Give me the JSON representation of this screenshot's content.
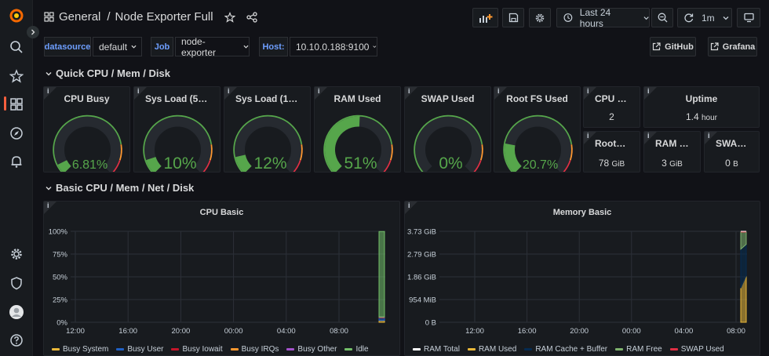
{
  "breadcrumb": {
    "folder": "General",
    "separator": "/",
    "title": "Node Exporter Full"
  },
  "toolbar": {
    "time_range": "Last 24 hours",
    "refresh_interval": "1m"
  },
  "variables": [
    {
      "label": "datasource",
      "value": "default"
    },
    {
      "label": "Job",
      "value": "node-exporter"
    },
    {
      "label": "Host:",
      "value": "10.10.0.188:9100"
    }
  ],
  "links": {
    "github": "GitHub",
    "grafana": "Grafana"
  },
  "rows": {
    "quick": "Quick CPU / Mem / Disk",
    "basic": "Basic CPU / Mem / Net / Disk"
  },
  "info_glyph": "i",
  "gauges": [
    {
      "title": "CPU Busy",
      "value_text": "6.81%",
      "value": 6.81
    },
    {
      "title": "Sys Load (5m ...",
      "value_text": "10%",
      "value": 10
    },
    {
      "title": "Sys Load (15...",
      "value_text": "12%",
      "value": 12
    },
    {
      "title": "RAM Used",
      "value_text": "51%",
      "value": 51
    },
    {
      "title": "SWAP Used",
      "value_text": "0%",
      "value": 0
    },
    {
      "title": "Root FS Used",
      "value_text": "20.7%",
      "value": 20.7
    }
  ],
  "stats": {
    "cpu_cores": {
      "title": "CPU C...",
      "value": "2",
      "unit": ""
    },
    "uptime": {
      "title": "Uptime",
      "value": "1.4",
      "unit": "hour"
    },
    "rootfs_total": {
      "title": "RootF...",
      "value": "78",
      "unit": "GiB"
    },
    "ram_total": {
      "title": "RAM T...",
      "value": "3",
      "unit": "GiB"
    },
    "swap_total": {
      "title": "SWAP ...",
      "value": "0",
      "unit": "B"
    }
  },
  "colors": {
    "green": "#56a64b",
    "orange": "#ff9830",
    "red": "#e02f44",
    "accent": "#f55f3e",
    "link": "#6e9fff"
  },
  "chart_data": [
    {
      "type": "area",
      "title": "CPU Basic",
      "y_ticks": [
        "100%",
        "75%",
        "50%",
        "25%",
        "0%"
      ],
      "ylim": [
        0,
        100
      ],
      "x_ticks": [
        "12:00",
        "16:00",
        "20:00",
        "00:00",
        "04:00",
        "08:00"
      ],
      "series": [
        {
          "name": "Busy System",
          "color": "#eab839",
          "values": [
            2,
            2
          ]
        },
        {
          "name": "Busy User",
          "color": "#1f60c4",
          "values": [
            3,
            3
          ]
        },
        {
          "name": "Busy Iowait",
          "color": "#c4162a",
          "values": [
            0.5,
            0.5
          ]
        },
        {
          "name": "Busy IRQs",
          "color": "#ff9830",
          "values": [
            0.2,
            0.2
          ]
        },
        {
          "name": "Busy Other",
          "color": "#a352cc",
          "values": [
            0.1,
            0.1
          ]
        },
        {
          "name": "Idle",
          "color": "#73bf69",
          "values": [
            94,
            94
          ]
        }
      ]
    },
    {
      "type": "area",
      "title": "Memory Basic",
      "y_ticks": [
        "3.73 GiB",
        "2.79 GiB",
        "1.86 GiB",
        "954 MiB",
        "0 B"
      ],
      "ylim": [
        0,
        3.73
      ],
      "x_ticks": [
        "12:00",
        "16:00",
        "20:00",
        "00:00",
        "04:00",
        "08:00"
      ],
      "series": [
        {
          "name": "RAM Total",
          "color": "#ffffff",
          "values": [
            3.73,
            3.73
          ]
        },
        {
          "name": "RAM Used",
          "color": "#eab839",
          "values": [
            1.4,
            1.9
          ]
        },
        {
          "name": "RAM Cache + Buffer",
          "color": "#052b51",
          "values": [
            1.6,
            1.3
          ]
        },
        {
          "name": "RAM Free",
          "color": "#7eb26d",
          "values": [
            0.7,
            0.5
          ]
        },
        {
          "name": "SWAP Used",
          "color": "#e02f44",
          "values": [
            0,
            0
          ]
        }
      ]
    }
  ]
}
